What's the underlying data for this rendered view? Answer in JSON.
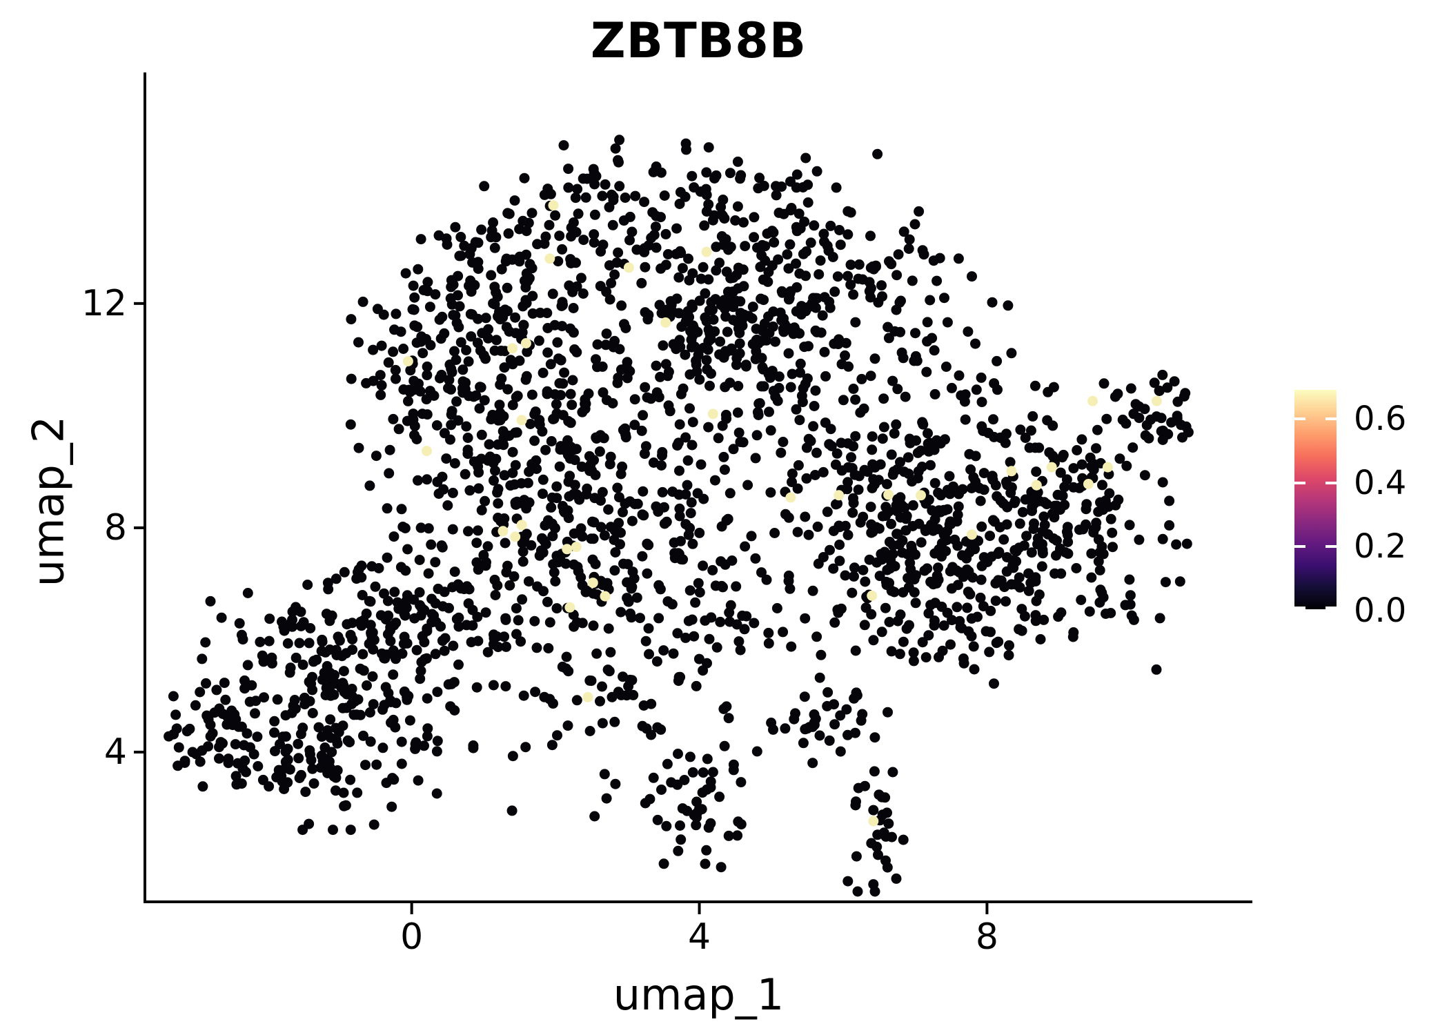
{
  "title": "ZBTB8B",
  "axes": {
    "x": {
      "label": "umap_1",
      "ticks": [
        "0",
        "4",
        "8"
      ],
      "tick_values": [
        0,
        4,
        8
      ]
    },
    "y": {
      "label": "umap_2",
      "ticks": [
        "4",
        "8",
        "12"
      ],
      "tick_values": [
        4,
        8,
        12
      ]
    }
  },
  "legend": {
    "tick_labels": [
      "0.6",
      "0.4",
      "0.2",
      "0.0"
    ],
    "tick_values": [
      0.6,
      0.4,
      0.2,
      0.0
    ],
    "range": [
      0,
      0.687
    ],
    "colormap": "magma",
    "gradient_stops": [
      "#000004",
      "#140e36",
      "#3b0f70",
      "#641a80",
      "#8c2981",
      "#b73779",
      "#de4968",
      "#f7705c",
      "#fe9f6d",
      "#fecf92",
      "#fcfdbf"
    ]
  },
  "colors": {
    "background": "#ffffff",
    "axis": "#000000",
    "point_zero": "#05050a",
    "point_high": "#f6efb5"
  },
  "chart_data": {
    "type": "scatter",
    "title": "ZBTB8B",
    "xlabel": "umap_1",
    "ylabel": "umap_2",
    "xlim": [
      -3.71,
      11.69
    ],
    "ylim": [
      1.33,
      16.12
    ],
    "grid": false,
    "legend_position": "right",
    "color_scale": {
      "name": "magma",
      "domain": [
        0,
        0.687
      ],
      "feature": "ZBTB8B expression"
    },
    "point_radius_px": 7.5,
    "seed": 42,
    "clusters": [
      {
        "cx": 3.19,
        "cy": 13.72,
        "sx": 1.25,
        "sy": 0.55,
        "n": 110
      },
      {
        "cx": 1.56,
        "cy": 12.62,
        "sx": 0.86,
        "sy": 0.74,
        "n": 90
      },
      {
        "cx": 5.02,
        "cy": 12.74,
        "sx": 1.05,
        "sy": 0.86,
        "n": 110
      },
      {
        "cx": 0.8,
        "cy": 11.51,
        "sx": 0.77,
        "sy": 0.74,
        "n": 100
      },
      {
        "cx": 0.22,
        "cy": 10.52,
        "sx": 0.53,
        "sy": 0.74,
        "n": 70
      },
      {
        "cx": 1.56,
        "cy": 9.54,
        "sx": 0.86,
        "sy": 0.86,
        "n": 110
      },
      {
        "cx": 4.44,
        "cy": 11.51,
        "sx": 0.67,
        "sy": 0.68,
        "n": 120
      },
      {
        "cx": 3.39,
        "cy": 10.52,
        "sx": 1.05,
        "sy": 0.98,
        "n": 90
      },
      {
        "cx": 6.36,
        "cy": 11.63,
        "sx": 0.96,
        "sy": 1.11,
        "n": 110
      },
      {
        "cx": 5.3,
        "cy": 9.54,
        "sx": 1.15,
        "sy": 1.11,
        "n": 60
      },
      {
        "cx": 2.04,
        "cy": 7.94,
        "sx": 0.77,
        "sy": 0.86,
        "n": 130
      },
      {
        "cx": 3.39,
        "cy": 7.57,
        "sx": 0.86,
        "sy": 1.11,
        "n": 80
      },
      {
        "cx": 4.34,
        "cy": 6.34,
        "sx": 0.86,
        "sy": 1.11,
        "n": 60
      },
      {
        "cx": 2.91,
        "cy": 5.11,
        "sx": 0.77,
        "sy": 0.98,
        "n": 70
      },
      {
        "cx": 7.7,
        "cy": 9.05,
        "sx": 1.05,
        "sy": 0.86,
        "n": 150
      },
      {
        "cx": 7.89,
        "cy": 7.45,
        "sx": 1.15,
        "sy": 0.86,
        "n": 150
      },
      {
        "cx": 6.74,
        "cy": 8.06,
        "sx": 0.67,
        "sy": 0.74,
        "n": 90
      },
      {
        "cx": 9.24,
        "cy": 8.06,
        "sx": 0.67,
        "sy": 0.74,
        "n": 80
      },
      {
        "cx": 10.34,
        "cy": 10.03,
        "sx": 0.31,
        "sy": 0.37,
        "n": 40
      },
      {
        "cx": 7.22,
        "cy": 6.34,
        "sx": 0.86,
        "sy": 0.62,
        "n": 60
      },
      {
        "cx": 5.93,
        "cy": 4.49,
        "sx": 0.34,
        "sy": 0.31,
        "n": 30
      },
      {
        "cx": -1.03,
        "cy": 5.23,
        "sx": 0.82,
        "sy": 0.86,
        "n": 200
      },
      {
        "cx": -2.85,
        "cy": 4.25,
        "sx": 0.43,
        "sy": 0.49,
        "n": 50
      },
      {
        "cx": -0.35,
        "cy": 6.34,
        "sx": 0.67,
        "sy": 0.49,
        "n": 60
      },
      {
        "cx": -1.41,
        "cy": 3.88,
        "sx": 0.77,
        "sy": 0.55,
        "n": 60
      },
      {
        "cx": 0.8,
        "cy": 6.58,
        "sx": 0.58,
        "sy": 0.62,
        "n": 50
      },
      {
        "cx": 0.03,
        "cy": 8.06,
        "sx": 0.48,
        "sy": 0.74,
        "n": 25
      },
      {
        "cx": 3.91,
        "cy": 3.08,
        "sx": 0.4,
        "sy": 0.55,
        "n": 45
      },
      {
        "cx": 6.41,
        "cy": 2.71,
        "sx": 0.27,
        "sy": 0.52,
        "n": 30
      }
    ],
    "highlight_points": [
      {
        "x": 1.97,
        "y": 13.75,
        "v": 0.65
      },
      {
        "x": 1.92,
        "y": 12.8,
        "v": 0.62
      },
      {
        "x": 3.02,
        "y": 12.64,
        "v": 0.67
      },
      {
        "x": 4.1,
        "y": 12.92,
        "v": 0.64
      },
      {
        "x": 3.53,
        "y": 11.66,
        "v": 0.66
      },
      {
        "x": 1.4,
        "y": 11.2,
        "v": 0.63
      },
      {
        "x": 1.59,
        "y": 11.29,
        "v": 0.65
      },
      {
        "x": -0.05,
        "y": 10.97,
        "v": 0.68
      },
      {
        "x": 0.21,
        "y": 9.37,
        "v": 0.61
      },
      {
        "x": 9.47,
        "y": 10.26,
        "v": 0.66
      },
      {
        "x": 10.36,
        "y": 10.26,
        "v": 0.69
      },
      {
        "x": 8.34,
        "y": 9.01,
        "v": 0.64
      },
      {
        "x": 8.9,
        "y": 9.08,
        "v": 0.65
      },
      {
        "x": 8.69,
        "y": 8.76,
        "v": 0.63
      },
      {
        "x": 5.94,
        "y": 8.58,
        "v": 0.66
      },
      {
        "x": 6.63,
        "y": 8.59,
        "v": 0.62
      },
      {
        "x": 7.08,
        "y": 8.58,
        "v": 0.65
      },
      {
        "x": 7.79,
        "y": 7.88,
        "v": 0.64
      },
      {
        "x": 6.4,
        "y": 6.79,
        "v": 0.67
      },
      {
        "x": 9.68,
        "y": 9.08,
        "v": 0.63
      },
      {
        "x": 9.41,
        "y": 8.78,
        "v": 0.65
      },
      {
        "x": 1.53,
        "y": 9.92,
        "v": 0.64
      },
      {
        "x": 4.19,
        "y": 10.03,
        "v": 0.66
      },
      {
        "x": 5.27,
        "y": 8.54,
        "v": 0.62
      },
      {
        "x": 1.53,
        "y": 8.05,
        "v": 0.65
      },
      {
        "x": 1.27,
        "y": 7.94,
        "v": 0.63
      },
      {
        "x": 1.44,
        "y": 7.84,
        "v": 0.66
      },
      {
        "x": 2.16,
        "y": 7.62,
        "v": 0.64
      },
      {
        "x": 2.29,
        "y": 7.66,
        "v": 0.65
      },
      {
        "x": 2.52,
        "y": 7.02,
        "v": 0.62
      },
      {
        "x": 2.69,
        "y": 6.78,
        "v": 0.66
      },
      {
        "x": 2.2,
        "y": 6.58,
        "v": 0.63
      },
      {
        "x": 2.45,
        "y": 4.98,
        "v": 0.65
      },
      {
        "x": 6.42,
        "y": 2.77,
        "v": 0.67
      }
    ]
  }
}
